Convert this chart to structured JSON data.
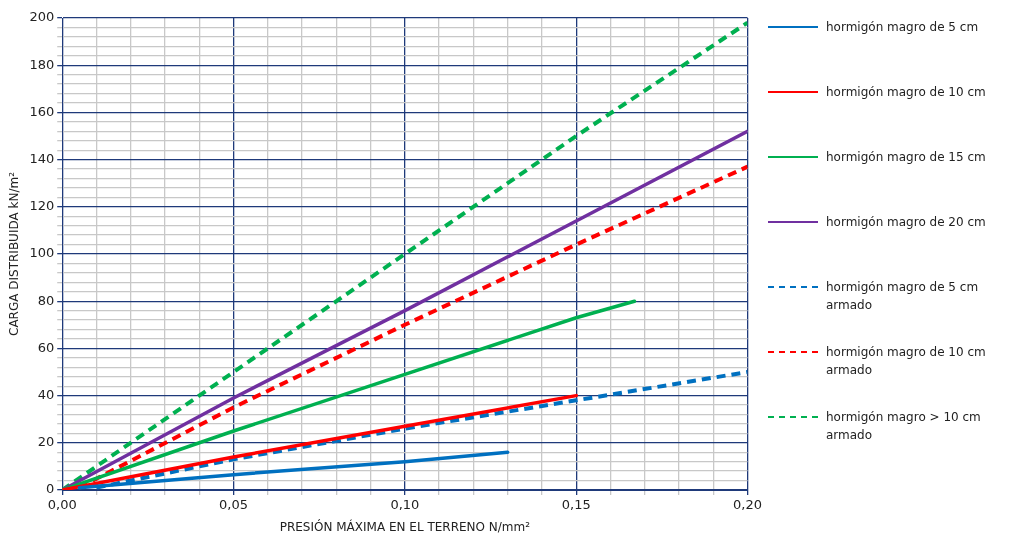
{
  "chart_data": {
    "type": "line",
    "xlabel": "PRESIÓN MÁXIMA EN EL TERRENO N/mm²",
    "ylabel": "CARGA DISTRIBUIDA kN/m²",
    "xlim": [
      0,
      0.2
    ],
    "ylim": [
      0,
      200
    ],
    "xticks": [
      {
        "value": 0,
        "label": "0,00"
      },
      {
        "value": 0.01,
        "label": null
      },
      {
        "value": 0.02,
        "label": null
      },
      {
        "value": 0.03,
        "label": null
      },
      {
        "value": 0.04,
        "label": null
      },
      {
        "value": 0.05,
        "label": "0,05"
      },
      {
        "value": 0.06,
        "label": null
      },
      {
        "value": 0.07,
        "label": null
      },
      {
        "value": 0.08,
        "label": null
      },
      {
        "value": 0.09,
        "label": null
      },
      {
        "value": 0.1,
        "label": "0,10"
      },
      {
        "value": 0.11,
        "label": null
      },
      {
        "value": 0.12,
        "label": null
      },
      {
        "value": 0.13,
        "label": null
      },
      {
        "value": 0.14,
        "label": null
      },
      {
        "value": 0.15,
        "label": "0,15"
      },
      {
        "value": 0.16,
        "label": null
      },
      {
        "value": 0.17,
        "label": null
      },
      {
        "value": 0.18,
        "label": null
      },
      {
        "value": 0.19,
        "label": null
      },
      {
        "value": 0.2,
        "label": "0,20"
      }
    ],
    "yticks": [
      0,
      {
        "value": 4,
        "label": null
      },
      {
        "value": 8,
        "label": null
      },
      {
        "value": 12,
        "label": null
      },
      {
        "value": 16,
        "label": null
      },
      20,
      {
        "value": 24,
        "label": null
      },
      {
        "value": 28,
        "label": null
      },
      {
        "value": 32,
        "label": null
      },
      {
        "value": 36,
        "label": null
      },
      40,
      {
        "value": 44,
        "label": null
      },
      {
        "value": 48,
        "label": null
      },
      {
        "value": 52,
        "label": null
      },
      {
        "value": 56,
        "label": null
      },
      60,
      {
        "value": 64,
        "label": null
      },
      {
        "value": 68,
        "label": null
      },
      {
        "value": 72,
        "label": null
      },
      {
        "value": 76,
        "label": null
      },
      80,
      {
        "value": 84,
        "label": null
      },
      {
        "value": 88,
        "label": null
      },
      {
        "value": 92,
        "label": null
      },
      {
        "value": 96,
        "label": null
      },
      100,
      {
        "value": 104,
        "label": null
      },
      {
        "value": 108,
        "label": null
      },
      {
        "value": 112,
        "label": null
      },
      {
        "value": 116,
        "label": null
      },
      120,
      {
        "value": 124,
        "label": null
      },
      {
        "value": 128,
        "label": null
      },
      {
        "value": 132,
        "label": null
      },
      {
        "value": 136,
        "label": null
      },
      140,
      {
        "value": 144,
        "label": null
      },
      {
        "value": 148,
        "label": null
      },
      {
        "value": 152,
        "label": null
      },
      {
        "value": 156,
        "label": null
      },
      160,
      {
        "value": 164,
        "label": null
      },
      {
        "value": 168,
        "label": null
      },
      {
        "value": 172,
        "label": null
      },
      {
        "value": 176,
        "label": null
      },
      180,
      {
        "value": 184,
        "label": null
      },
      {
        "value": 188,
        "label": null
      },
      {
        "value": 192,
        "label": null
      },
      {
        "value": 196,
        "label": null
      },
      200
    ],
    "grid": true,
    "legend": "right",
    "marker": "none",
    "series": [
      {
        "name": "hormigón magro de 5 cm",
        "color": "#0070c0",
        "line_style": "solid",
        "x": [
          0.005,
          0.05,
          0.1,
          0.13
        ],
        "values": [
          1,
          6.5,
          12,
          16
        ]
      },
      {
        "name": "hormigón magro de 10 cm",
        "color": "#ff0000",
        "line_style": "solid",
        "x": [
          0,
          0.05,
          0.1,
          0.15
        ],
        "values": [
          0,
          14,
          27,
          40
        ]
      },
      {
        "name": "hormigón magro de 15 cm",
        "color": "#00b050",
        "line_style": "solid",
        "x": [
          0,
          0.05,
          0.1,
          0.15,
          0.167
        ],
        "values": [
          0,
          25,
          49,
          73,
          80
        ]
      },
      {
        "name": "hormigón magro de 20 cm",
        "color": "#7030a0",
        "line_style": "solid",
        "x": [
          0,
          0.05,
          0.1,
          0.15,
          0.2
        ],
        "values": [
          0,
          39,
          76,
          114,
          152
        ]
      },
      {
        "name": "hormigón magro de 5 cm armado",
        "color": "#0070c0",
        "line_style": "dashed",
        "x": [
          0.01,
          0.05,
          0.1,
          0.15,
          0.2
        ],
        "values": [
          1,
          13,
          26,
          38,
          50
        ]
      },
      {
        "name": "hormigón magro de 10 cm armado",
        "color": "#ff0000",
        "line_style": "dashed",
        "x": [
          0.005,
          0.05,
          0.1,
          0.15,
          0.2
        ],
        "values": [
          1,
          35,
          70,
          104,
          137
        ]
      },
      {
        "name": "hormigón magro > 10 cm armado",
        "color": "#00b050",
        "line_style": "dashed",
        "x": [
          0,
          0.05,
          0.1,
          0.15,
          0.2
        ],
        "values": [
          0,
          50,
          100,
          150,
          198
        ]
      }
    ]
  }
}
